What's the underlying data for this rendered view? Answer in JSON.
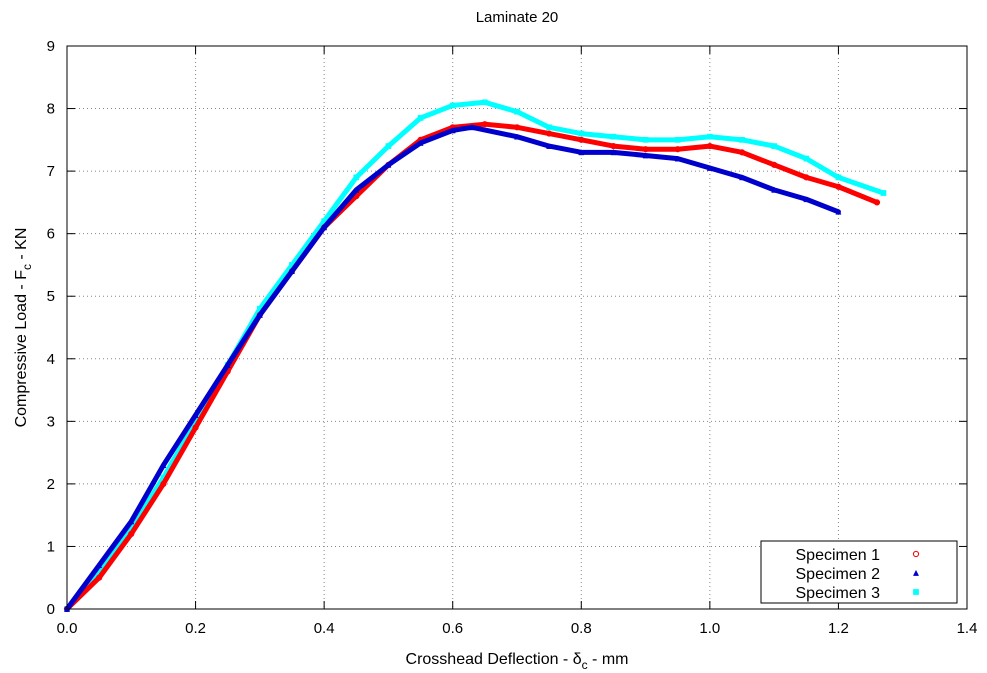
{
  "chart_data": {
    "type": "scatter",
    "title": "Laminate 20",
    "xlabel": {
      "prefix": "Crosshead Deflection - δ",
      "sub": "c",
      "suffix": " - mm"
    },
    "ylabel": {
      "prefix": "Compressive Load - F",
      "sub": "c",
      "suffix": " - KN"
    },
    "xlim": [
      0,
      1.4
    ],
    "ylim": [
      0,
      9
    ],
    "xticks": [
      "0.0",
      "0.2",
      "0.4",
      "0.6",
      "0.8",
      "1.0",
      "1.2",
      "1.4"
    ],
    "yticks": [
      "0",
      "1",
      "2",
      "3",
      "4",
      "5",
      "6",
      "7",
      "8",
      "9"
    ],
    "grid": true,
    "legend_position": "bottom-right",
    "series": [
      {
        "name": "Specimen 1",
        "marker": "circle",
        "color": "#ff0000",
        "x": [
          0.0,
          0.05,
          0.1,
          0.15,
          0.2,
          0.25,
          0.3,
          0.35,
          0.4,
          0.45,
          0.5,
          0.55,
          0.6,
          0.65,
          0.7,
          0.75,
          0.8,
          0.85,
          0.9,
          0.95,
          1.0,
          1.05,
          1.1,
          1.15,
          1.2,
          1.26
        ],
        "y": [
          0.0,
          0.5,
          1.2,
          2.0,
          2.9,
          3.8,
          4.7,
          5.4,
          6.1,
          6.6,
          7.1,
          7.5,
          7.7,
          7.75,
          7.7,
          7.6,
          7.5,
          7.4,
          7.35,
          7.35,
          7.4,
          7.3,
          7.1,
          6.9,
          6.75,
          6.5
        ]
      },
      {
        "name": "Specimen 2",
        "marker": "triangle",
        "color": "#0000cc",
        "x": [
          0.0,
          0.05,
          0.1,
          0.15,
          0.2,
          0.25,
          0.3,
          0.35,
          0.4,
          0.45,
          0.5,
          0.55,
          0.6,
          0.63,
          0.7,
          0.75,
          0.8,
          0.85,
          0.9,
          0.95,
          1.0,
          1.05,
          1.1,
          1.15,
          1.2
        ],
        "y": [
          0.0,
          0.7,
          1.4,
          2.3,
          3.1,
          3.9,
          4.7,
          5.4,
          6.1,
          6.7,
          7.1,
          7.45,
          7.65,
          7.7,
          7.55,
          7.4,
          7.3,
          7.3,
          7.25,
          7.2,
          7.05,
          6.9,
          6.7,
          6.55,
          6.35
        ]
      },
      {
        "name": "Specimen 3",
        "marker": "square",
        "color": "#00ffff",
        "x": [
          0.0,
          0.05,
          0.1,
          0.15,
          0.2,
          0.25,
          0.3,
          0.35,
          0.4,
          0.45,
          0.5,
          0.55,
          0.6,
          0.65,
          0.7,
          0.75,
          0.8,
          0.85,
          0.9,
          0.95,
          1.0,
          1.05,
          1.1,
          1.15,
          1.2,
          1.27
        ],
        "y": [
          0.0,
          0.6,
          1.3,
          2.1,
          3.0,
          3.9,
          4.8,
          5.5,
          6.2,
          6.9,
          7.4,
          7.85,
          8.05,
          8.1,
          7.95,
          7.7,
          7.6,
          7.55,
          7.5,
          7.5,
          7.55,
          7.5,
          7.4,
          7.2,
          6.9,
          6.65
        ]
      }
    ]
  }
}
